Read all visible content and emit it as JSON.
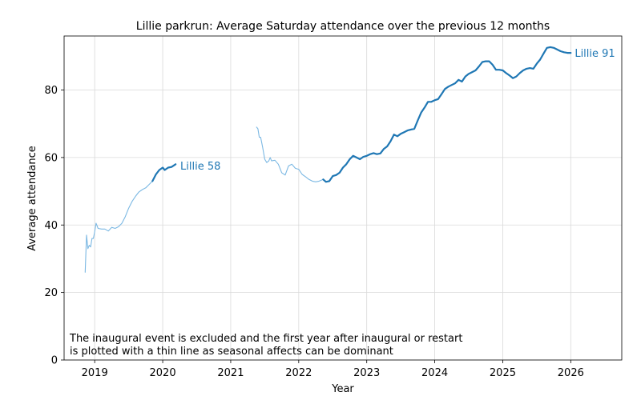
{
  "chart_data": {
    "type": "line",
    "title": "Lillie parkrun: Average Saturday attendance over the previous 12 months",
    "xlabel": "Year",
    "ylabel": "Average attendance",
    "xlim": [
      2018.55,
      2026.75
    ],
    "ylim": [
      0,
      96
    ],
    "x_ticks": [
      2019,
      2020,
      2021,
      2022,
      2023,
      2024,
      2025,
      2026
    ],
    "y_ticks": [
      0,
      20,
      40,
      60,
      80
    ],
    "grid": true,
    "line_color": "#1f77b4",
    "thin_line_color": "#7bb8e3",
    "note": [
      "The inaugural event is excluded and the first year after inaugural or restart",
      "is plotted with a thin line as seasonal affects can be dominant"
    ],
    "annotations": [
      {
        "text": "Lillie 58",
        "x": 2020.2,
        "y": 57.6
      },
      {
        "text": "Lillie 91",
        "x": 2026.0,
        "y": 91
      }
    ],
    "series": [
      {
        "style": "thin",
        "points": [
          [
            2018.86,
            26
          ],
          [
            2018.88,
            37
          ],
          [
            2018.9,
            33
          ],
          [
            2018.92,
            34
          ],
          [
            2018.94,
            33.5
          ],
          [
            2018.96,
            36
          ],
          [
            2018.98,
            36
          ],
          [
            2019.0,
            38
          ],
          [
            2019.02,
            40.5
          ],
          [
            2019.05,
            39
          ],
          [
            2019.1,
            38.8
          ],
          [
            2019.15,
            38.8
          ],
          [
            2019.2,
            38.2
          ],
          [
            2019.25,
            39.3
          ],
          [
            2019.3,
            39
          ],
          [
            2019.35,
            39.5
          ],
          [
            2019.4,
            40.5
          ],
          [
            2019.45,
            42.5
          ],
          [
            2019.5,
            45
          ],
          [
            2019.55,
            47
          ],
          [
            2019.6,
            48.5
          ],
          [
            2019.65,
            49.8
          ],
          [
            2019.7,
            50.5
          ],
          [
            2019.75,
            51
          ],
          [
            2019.8,
            52
          ],
          [
            2019.85,
            53
          ]
        ]
      },
      {
        "style": "thick",
        "points": [
          [
            2019.85,
            53
          ],
          [
            2019.9,
            55
          ],
          [
            2019.95,
            56.3
          ],
          [
            2020.0,
            57
          ],
          [
            2020.03,
            56.3
          ],
          [
            2020.08,
            57
          ],
          [
            2020.13,
            57.2
          ],
          [
            2020.19,
            58
          ]
        ]
      },
      {
        "style": "thin",
        "points": [
          [
            2021.38,
            69
          ],
          [
            2021.4,
            68.5
          ],
          [
            2021.42,
            66
          ],
          [
            2021.44,
            66
          ],
          [
            2021.47,
            63
          ],
          [
            2021.5,
            59.5
          ],
          [
            2021.53,
            58.5
          ],
          [
            2021.56,
            59
          ],
          [
            2021.58,
            60
          ],
          [
            2021.6,
            59
          ],
          [
            2021.65,
            59.2
          ],
          [
            2021.7,
            58
          ],
          [
            2021.75,
            55.5
          ],
          [
            2021.8,
            54.8
          ],
          [
            2021.85,
            57.5
          ],
          [
            2021.9,
            58
          ],
          [
            2021.95,
            56.8
          ],
          [
            2022.0,
            56.5
          ],
          [
            2022.05,
            55
          ],
          [
            2022.1,
            54.3
          ],
          [
            2022.15,
            53.5
          ],
          [
            2022.2,
            53
          ],
          [
            2022.25,
            52.8
          ],
          [
            2022.3,
            53
          ],
          [
            2022.36,
            53.5
          ]
        ]
      },
      {
        "style": "thick",
        "points": [
          [
            2022.36,
            53.5
          ],
          [
            2022.4,
            52.8
          ],
          [
            2022.45,
            53
          ],
          [
            2022.5,
            54.5
          ],
          [
            2022.55,
            54.8
          ],
          [
            2022.6,
            55.5
          ],
          [
            2022.65,
            57
          ],
          [
            2022.7,
            58
          ],
          [
            2022.75,
            59.5
          ],
          [
            2022.8,
            60.5
          ],
          [
            2022.85,
            60
          ],
          [
            2022.9,
            59.5
          ],
          [
            2022.95,
            60.2
          ],
          [
            2023.0,
            60.5
          ],
          [
            2023.05,
            61
          ],
          [
            2023.1,
            61.3
          ],
          [
            2023.15,
            61
          ],
          [
            2023.2,
            61.2
          ],
          [
            2023.25,
            62.5
          ],
          [
            2023.3,
            63.3
          ],
          [
            2023.35,
            64.8
          ],
          [
            2023.4,
            66.8
          ],
          [
            2023.45,
            66.3
          ],
          [
            2023.5,
            67
          ],
          [
            2023.55,
            67.5
          ],
          [
            2023.6,
            68
          ],
          [
            2023.65,
            68.3
          ],
          [
            2023.7,
            68.5
          ],
          [
            2023.75,
            71
          ],
          [
            2023.8,
            73.3
          ],
          [
            2023.85,
            74.8
          ],
          [
            2023.9,
            76.5
          ],
          [
            2023.95,
            76.5
          ],
          [
            2024.0,
            77
          ],
          [
            2024.05,
            77.3
          ],
          [
            2024.1,
            78.8
          ],
          [
            2024.15,
            80.3
          ],
          [
            2024.2,
            81
          ],
          [
            2024.25,
            81.5
          ],
          [
            2024.3,
            82
          ],
          [
            2024.35,
            83
          ],
          [
            2024.4,
            82.5
          ],
          [
            2024.45,
            84
          ],
          [
            2024.5,
            84.8
          ],
          [
            2024.55,
            85.3
          ],
          [
            2024.6,
            85.8
          ],
          [
            2024.65,
            87
          ],
          [
            2024.7,
            88.3
          ],
          [
            2024.75,
            88.5
          ],
          [
            2024.8,
            88.5
          ],
          [
            2024.85,
            87.5
          ],
          [
            2024.9,
            86
          ],
          [
            2024.95,
            86
          ],
          [
            2025.0,
            85.8
          ],
          [
            2025.05,
            85
          ],
          [
            2025.1,
            84.3
          ],
          [
            2025.15,
            83.5
          ],
          [
            2025.2,
            84
          ],
          [
            2025.25,
            85
          ],
          [
            2025.3,
            85.8
          ],
          [
            2025.35,
            86.3
          ],
          [
            2025.4,
            86.5
          ],
          [
            2025.45,
            86.3
          ],
          [
            2025.5,
            87.8
          ],
          [
            2025.55,
            89
          ],
          [
            2025.6,
            90.8
          ],
          [
            2025.65,
            92.5
          ],
          [
            2025.7,
            92.7
          ],
          [
            2025.75,
            92.5
          ],
          [
            2025.8,
            92
          ],
          [
            2025.85,
            91.5
          ],
          [
            2025.9,
            91.2
          ],
          [
            2025.95,
            91
          ],
          [
            2026.0,
            91
          ]
        ]
      }
    ]
  }
}
